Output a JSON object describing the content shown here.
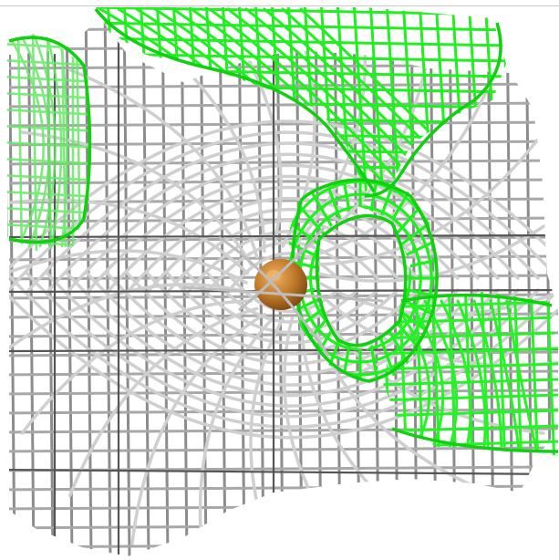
{
  "scene": {
    "colors": {
      "background": "#ffffff",
      "grey_mesh_dark": "#5a5a5a",
      "grey_mesh_mid": "#9a9a9a",
      "grey_mesh_light": "#d4d4d4",
      "green_mesh": "#1ee61e",
      "green_mesh_bright": "#3cff3c",
      "atom_sphere": "#c07a2a",
      "atom_highlight": "#e8a24c"
    }
  }
}
